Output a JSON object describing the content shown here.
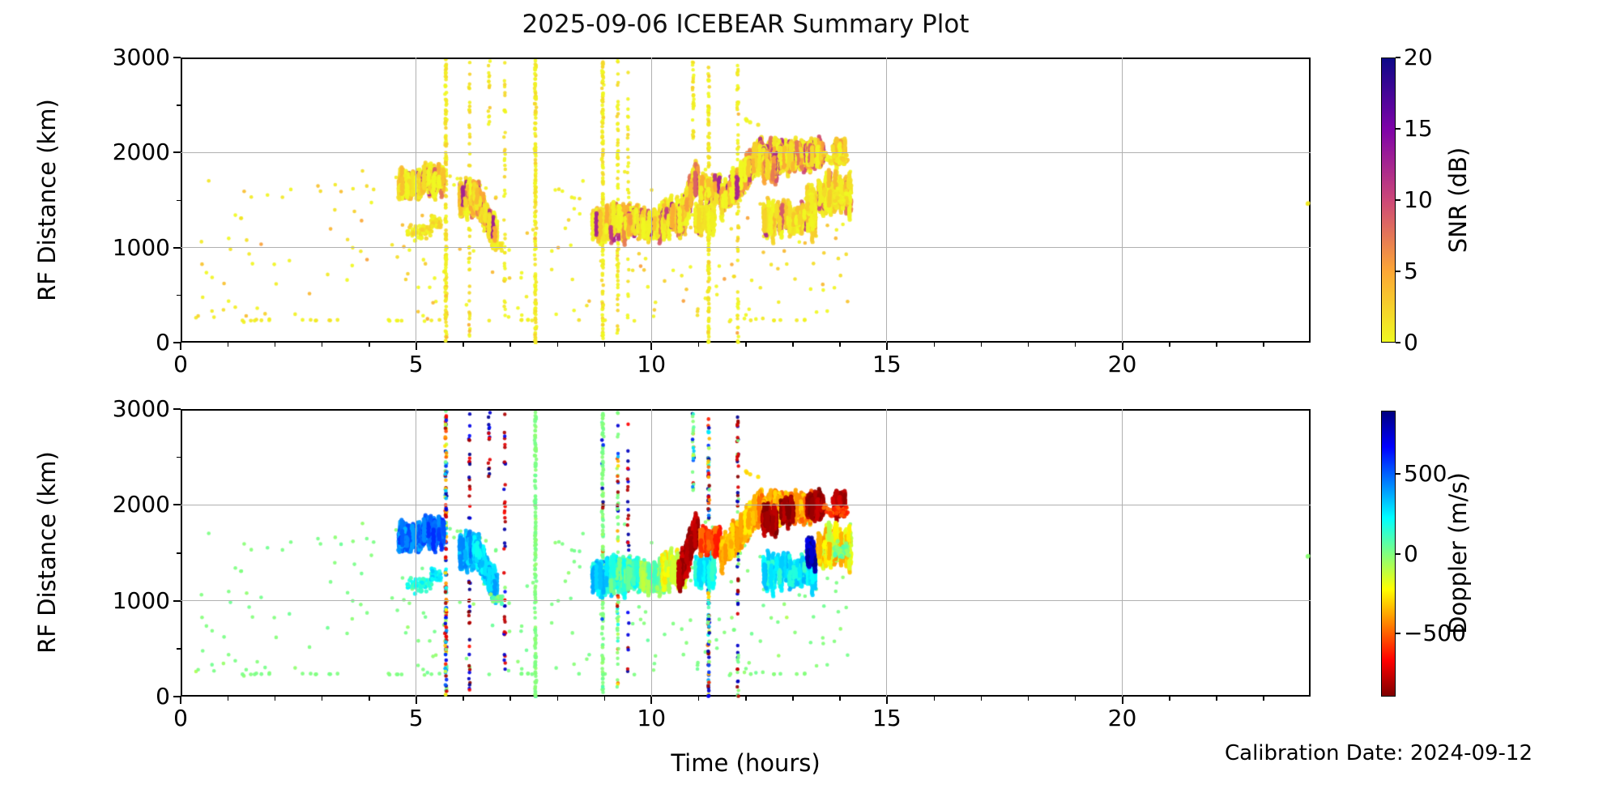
{
  "chart_data": {
    "type": "scatter",
    "title": "2025-09-06 ICEBEAR Summary Plot",
    "xlabel": "Time (hours)",
    "ylabel": "RF Distance (km)",
    "annotation": "Calibration Date: 2024-09-12",
    "xlim": [
      0,
      24
    ],
    "ylim": [
      0,
      3000
    ],
    "xticks": [
      {
        "v": 0,
        "label": "0"
      },
      {
        "v": 5,
        "label": "5"
      },
      {
        "v": 10,
        "label": "10"
      },
      {
        "v": 15,
        "label": "15"
      },
      {
        "v": 20,
        "label": "20"
      }
    ],
    "yticks": [
      {
        "v": 0,
        "label": "0"
      },
      {
        "v": 1000,
        "label": "1000"
      },
      {
        "v": 2000,
        "label": "2000"
      },
      {
        "v": 3000,
        "label": "3000"
      }
    ],
    "xminor_step": 1,
    "yminor_step": 500,
    "grid": {
      "color": "#b0b0b0",
      "x": [
        5,
        10,
        15,
        20
      ],
      "y": [
        1000,
        2000
      ]
    },
    "figure": {
      "background": "#ffffff",
      "spine_color": "#000000",
      "text_color": "#000000"
    },
    "panels": [
      {
        "id": "snr",
        "color_by": "snr",
        "colorbar": {
          "label": "SNR (dB)",
          "range": [
            0,
            20
          ],
          "colormap": "plasma_r",
          "ticks": [
            {
              "v": 0,
              "label": "0"
            },
            {
              "v": 5,
              "label": "5"
            },
            {
              "v": 10,
              "label": "10"
            },
            {
              "v": 15,
              "label": "15"
            },
            {
              "v": 20,
              "label": "20"
            }
          ],
          "stops": [
            {
              "p": 0,
              "c": "#f0f921"
            },
            {
              "p": 0.25,
              "c": "#fca636"
            },
            {
              "p": 0.5,
              "c": "#cc4778"
            },
            {
              "p": 0.75,
              "c": "#7e03a8"
            },
            {
              "p": 1,
              "c": "#0d0887"
            }
          ]
        }
      },
      {
        "id": "doppler",
        "color_by": "doppler",
        "colorbar": {
          "label": "Doppler (m/s)",
          "range": [
            -900,
            900
          ],
          "colormap": "jet_r",
          "ticks": [
            {
              "v": 500,
              "label": "500"
            },
            {
              "v": 0,
              "label": "0"
            },
            {
              "v": -500,
              "label": "−500"
            }
          ],
          "stops": [
            {
              "p": 0,
              "c": "#7f0000"
            },
            {
              "p": 0.125,
              "c": "#ff0000"
            },
            {
              "p": 0.375,
              "c": "#ffff00"
            },
            {
              "p": 0.5,
              "c": "#80ff80"
            },
            {
              "p": 0.625,
              "c": "#00ffff"
            },
            {
              "p": 0.875,
              "c": "#0000ff"
            },
            {
              "p": 1,
              "c": "#000080"
            }
          ]
        }
      }
    ],
    "row_echo_hours": [
      1.3,
      1.45,
      1.55,
      1.7,
      1.85,
      2.55,
      2.7,
      2.85,
      3.15,
      3.3,
      4.4,
      4.55,
      4.65,
      5.3,
      5.45,
      6.5,
      7.2,
      7.35,
      7.5,
      8.4,
      9.0,
      9.6,
      11.65,
      12.1,
      12.55,
      12.7,
      13.05,
      13.25
    ],
    "scatter_features": [
      {
        "kind": "background",
        "t": [
          0.15,
          14.2
        ],
        "d": [
          230,
          1840
        ],
        "n": 240,
        "snr_max": 5.5,
        "dop_sigma": 55,
        "r": 2.3
      },
      {
        "kind": "row",
        "d": [
          246,
          260
        ],
        "snr_max": 1.5,
        "dop_sigma": 25,
        "r": 2.4
      },
      {
        "kind": "stripe",
        "hour": 5.6,
        "d": [
          0,
          3000
        ],
        "n": 150,
        "mode": "full",
        "r": 2.3
      },
      {
        "kind": "stripe",
        "hour": 6.1,
        "d": [
          0,
          3000
        ],
        "n": 55,
        "mode": "extreme",
        "r": 2.2
      },
      {
        "kind": "stripe",
        "hour": 6.52,
        "d": [
          2250,
          2980
        ],
        "n": 16,
        "mode": "extreme",
        "r": 2.2
      },
      {
        "kind": "stripe",
        "hour": 6.85,
        "d": [
          300,
          2980
        ],
        "n": 40,
        "mode": "extreme",
        "r": 2.2
      },
      {
        "kind": "stripe",
        "hour": 7.5,
        "d": [
          0,
          3000
        ],
        "n": 160,
        "mode": "zero",
        "r": 2.3
      },
      {
        "kind": "stripe",
        "hour": 8.93,
        "d": [
          0,
          3000
        ],
        "n": 140,
        "mode": "zeromix",
        "r": 2.3
      },
      {
        "kind": "stripe",
        "hour": 9.25,
        "d": [
          0,
          3000
        ],
        "n": 70,
        "mode": "mix",
        "r": 2.2
      },
      {
        "kind": "stripe",
        "hour": 9.47,
        "d": [
          200,
          2900
        ],
        "n": 35,
        "mode": "extreme",
        "r": 2.2
      },
      {
        "kind": "stripe",
        "hour": 10.85,
        "d": [
          2150,
          3000
        ],
        "n": 30,
        "mode": "mix",
        "r": 2.2
      },
      {
        "kind": "stripe",
        "hour": 11.18,
        "d": [
          0,
          3000
        ],
        "n": 140,
        "mode": "full",
        "r": 2.3
      },
      {
        "kind": "stripe",
        "hour": 11.8,
        "d": [
          0,
          3000
        ],
        "n": 70,
        "mode": "extreme2",
        "r": 2.2
      },
      {
        "kind": "blob",
        "t": [
          4.6,
          5.08
        ],
        "d": [
          1530,
          1810
        ],
        "n": 120,
        "snr": [
          0,
          4
        ],
        "core": 0.1,
        "dop": [
          350,
          580
        ],
        "streak": 1
      },
      {
        "kind": "blob",
        "t": [
          4.78,
          5.3
        ],
        "d": [
          1040,
          1330
        ],
        "n": 55,
        "snr": [
          0,
          3
        ],
        "core": 0,
        "dop": [
          60,
          260
        ],
        "streak": 0
      },
      {
        "kind": "blob",
        "t": [
          5.08,
          5.55
        ],
        "d": [
          1580,
          1860
        ],
        "n": 110,
        "snr": [
          0,
          5
        ],
        "core": 0.15,
        "dop": [
          380,
          620
        ],
        "streak": 1
      },
      {
        "kind": "blob",
        "t": [
          5.28,
          5.5
        ],
        "d": [
          1150,
          1420
        ],
        "n": 40,
        "snr": [
          0,
          3
        ],
        "core": 0,
        "dop": [
          150,
          350
        ],
        "streak": 0
      },
      {
        "kind": "blob",
        "t": [
          5.9,
          6.3
        ],
        "d": [
          1280,
          1760
        ],
        "n": 95,
        "snr": [
          0,
          5
        ],
        "core": 0.12,
        "dop": [
          260,
          480
        ],
        "streak": 1
      },
      {
        "kind": "blob",
        "t": [
          6.2,
          6.68
        ],
        "ramp": [
          1560,
          1130
        ],
        "spread": 110,
        "n": 140,
        "snr": [
          0,
          6
        ],
        "core": 0.18,
        "dop": [
          200,
          420
        ],
        "streak": 1
      },
      {
        "kind": "blob",
        "t": [
          6.55,
          6.8
        ],
        "d": [
          950,
          1120
        ],
        "n": 25,
        "snr": [
          0,
          2
        ],
        "core": 0,
        "dop": [
          -60,
          120
        ],
        "streak": 0
      },
      {
        "kind": "blob",
        "t": [
          8.72,
          9.12
        ],
        "d": [
          1080,
          1420
        ],
        "n": 100,
        "snr": [
          0,
          5
        ],
        "core": 0.1,
        "dop": [
          150,
          380
        ],
        "streak": 1
      },
      {
        "kind": "blob",
        "t": [
          9.1,
          9.75
        ],
        "d": [
          1080,
          1500
        ],
        "n": 120,
        "snr": [
          0,
          6
        ],
        "core": 0.15,
        "dop": [
          0,
          260
        ],
        "streak": 1
      },
      {
        "kind": "blob",
        "t": [
          9.75,
          10.25
        ],
        "d": [
          1080,
          1420
        ],
        "n": 85,
        "snr": [
          0,
          4
        ],
        "core": 0.08,
        "dop": [
          -120,
          120
        ],
        "streak": 1
      },
      {
        "kind": "blob",
        "t": [
          10.2,
          10.68
        ],
        "d": [
          1100,
          1560
        ],
        "n": 100,
        "snr": [
          0,
          5
        ],
        "core": 0.1,
        "dop": [
          -300,
          -60
        ],
        "streak": 1
      },
      {
        "kind": "blob",
        "t": [
          10.55,
          10.95
        ],
        "ramp": [
          1250,
          1800
        ],
        "spread": 140,
        "n": 120,
        "snr": [
          1,
          8
        ],
        "core": 0.2,
        "dop": [
          -880,
          -740
        ],
        "streak": 1
      },
      {
        "kind": "blob",
        "t": [
          10.9,
          11.3
        ],
        "d": [
          1150,
          1480
        ],
        "n": 60,
        "snr": [
          0,
          4
        ],
        "core": 0.08,
        "dop": [
          120,
          330
        ],
        "streak": 1
      },
      {
        "kind": "blob",
        "t": [
          11.0,
          11.42
        ],
        "d": [
          1500,
          1760
        ],
        "n": 55,
        "snr": [
          0,
          5
        ],
        "core": 0.1,
        "dop": [
          -680,
          -460
        ],
        "streak": 1
      },
      {
        "kind": "blob",
        "t": [
          11.45,
          12.3
        ],
        "ramp": [
          1480,
          2020
        ],
        "spread": 130,
        "n": 240,
        "snr": [
          0,
          7
        ],
        "core": 0.2,
        "dop": [
          -460,
          -240
        ],
        "streak": 1
      },
      {
        "kind": "blob",
        "t": [
          12.25,
          13.4
        ],
        "d": [
          1830,
          2130
        ],
        "n": 300,
        "snr": [
          0,
          8
        ],
        "core": 0.22,
        "dop": [
          -520,
          -280
        ],
        "streak": 1
      },
      {
        "kind": "blob",
        "t": [
          12.33,
          12.62
        ],
        "d": [
          1730,
          1980
        ],
        "n": 70,
        "snr": [
          1,
          7
        ],
        "core": 0.15,
        "dop": [
          -900,
          -770
        ],
        "streak": 1
      },
      {
        "kind": "blob",
        "t": [
          12.72,
          12.98
        ],
        "d": [
          1830,
          2060
        ],
        "n": 45,
        "snr": [
          1,
          6
        ],
        "core": 0.1,
        "dop": [
          -900,
          -780
        ],
        "streak": 1
      },
      {
        "kind": "blob",
        "t": [
          13.28,
          13.62
        ],
        "d": [
          1880,
          2110
        ],
        "n": 75,
        "snr": [
          1,
          7
        ],
        "core": 0.15,
        "dop": [
          -900,
          -770
        ],
        "streak": 1
      },
      {
        "kind": "blob",
        "t": [
          13.8,
          14.08
        ],
        "d": [
          1930,
          2100
        ],
        "n": 55,
        "snr": [
          1,
          6
        ],
        "core": 0.1,
        "dop": [
          -880,
          -740
        ],
        "streak": 1
      },
      {
        "kind": "blob",
        "t": [
          12.35,
          13.45
        ],
        "d": [
          1090,
          1540
        ],
        "n": 120,
        "snr": [
          0,
          4
        ],
        "core": 0.06,
        "dop": [
          120,
          360
        ],
        "streak": 1
      },
      {
        "kind": "blob",
        "t": [
          13.28,
          13.47
        ],
        "d": [
          1290,
          1660
        ],
        "n": 35,
        "snr": [
          0,
          3
        ],
        "core": 0,
        "dop": [
          680,
          880
        ],
        "streak": 1
      },
      {
        "kind": "blob",
        "t": [
          13.5,
          14.2
        ],
        "d": [
          1280,
          1820
        ],
        "n": 90,
        "snr": [
          0,
          4
        ],
        "core": 0.08,
        "dop": [
          -420,
          -80
        ],
        "streak": 1
      },
      {
        "kind": "blob",
        "t": [
          13.85,
          14.18
        ],
        "d": [
          1380,
          1700
        ],
        "n": 45,
        "snr": [
          0,
          3
        ],
        "core": 0,
        "dop": [
          -80,
          120
        ],
        "streak": 0
      },
      {
        "kind": "blob",
        "t": [
          13.6,
          14.15
        ],
        "d": [
          1850,
          2080
        ],
        "n": 40,
        "snr": [
          0,
          4
        ],
        "core": 0,
        "dop": [
          -650,
          -450
        ],
        "streak": 0
      },
      {
        "kind": "blob",
        "t": [
          11.95,
          12.25
        ],
        "d": [
          2250,
          2420
        ],
        "n": 4,
        "snr": [
          0,
          2
        ],
        "core": 0,
        "dop": [
          -350,
          -250
        ],
        "streak": 0
      },
      {
        "kind": "blob",
        "t": [
          23.9,
          23.97
        ],
        "d": [
          1460,
          1495
        ],
        "n": 2,
        "snr": [
          0,
          1
        ],
        "core": 0,
        "dop": [
          -30,
          30
        ],
        "streak": 0
      }
    ]
  }
}
